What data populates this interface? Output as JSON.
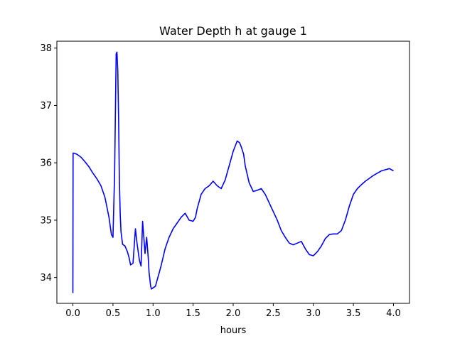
{
  "chart_data": {
    "type": "line",
    "title": "Water Depth h at gauge 1",
    "xlabel": "hours",
    "ylabel": "",
    "xlim": [
      -0.2,
      4.2
    ],
    "ylim": [
      33.55,
      38.12
    ],
    "xticks": [
      0.0,
      0.5,
      1.0,
      1.5,
      2.0,
      2.5,
      3.0,
      3.5,
      4.0
    ],
    "xtick_labels": [
      "0.0",
      "0.5",
      "1.0",
      "1.5",
      "2.0",
      "2.5",
      "3.0",
      "3.5",
      "4.0"
    ],
    "yticks": [
      34,
      35,
      36,
      37,
      38
    ],
    "ytick_labels": [
      "34",
      "35",
      "36",
      "37",
      "38"
    ],
    "grid": false,
    "series": [
      {
        "color": "#0000ff",
        "x": [
          0.0,
          0.002,
          0.01,
          0.05,
          0.1,
          0.15,
          0.2,
          0.25,
          0.3,
          0.35,
          0.4,
          0.45,
          0.48,
          0.5,
          0.52,
          0.54,
          0.55,
          0.56,
          0.57,
          0.58,
          0.59,
          0.6,
          0.62,
          0.65,
          0.68,
          0.7,
          0.72,
          0.75,
          0.78,
          0.8,
          0.83,
          0.85,
          0.87,
          0.9,
          0.92,
          0.94,
          0.95,
          0.97,
          0.98,
          1.0,
          1.03,
          1.05,
          1.08,
          1.1,
          1.15,
          1.2,
          1.25,
          1.3,
          1.35,
          1.4,
          1.45,
          1.5,
          1.53,
          1.55,
          1.58,
          1.6,
          1.65,
          1.7,
          1.75,
          1.8,
          1.85,
          1.9,
          1.95,
          2.0,
          2.05,
          2.08,
          2.1,
          2.13,
          2.15,
          2.2,
          2.25,
          2.3,
          2.35,
          2.4,
          2.45,
          2.5,
          2.55,
          2.6,
          2.65,
          2.7,
          2.75,
          2.8,
          2.85,
          2.9,
          2.95,
          3.0,
          3.05,
          3.1,
          3.15,
          3.2,
          3.25,
          3.3,
          3.35,
          3.4,
          3.45,
          3.5,
          3.55,
          3.6,
          3.65,
          3.7,
          3.75,
          3.8,
          3.85,
          3.9,
          3.95,
          4.0
        ],
        "y": [
          33.73,
          36.17,
          36.17,
          36.15,
          36.1,
          36.02,
          35.93,
          35.82,
          35.72,
          35.6,
          35.4,
          35.05,
          34.75,
          34.7,
          35.8,
          37.9,
          37.93,
          37.6,
          36.8,
          35.7,
          35.1,
          34.8,
          34.58,
          34.55,
          34.45,
          34.35,
          34.22,
          34.25,
          34.85,
          34.6,
          34.3,
          34.2,
          34.98,
          34.42,
          34.7,
          34.35,
          34.1,
          33.85,
          33.8,
          33.82,
          33.85,
          33.95,
          34.1,
          34.2,
          34.5,
          34.7,
          34.85,
          34.95,
          35.05,
          35.12,
          35.0,
          34.98,
          35.05,
          35.2,
          35.35,
          35.45,
          35.55,
          35.6,
          35.68,
          35.6,
          35.55,
          35.7,
          35.95,
          36.2,
          36.38,
          36.35,
          36.28,
          36.15,
          35.95,
          35.65,
          35.5,
          35.52,
          35.55,
          35.45,
          35.3,
          35.15,
          35.0,
          34.82,
          34.7,
          34.6,
          34.57,
          34.6,
          34.63,
          34.5,
          34.4,
          34.38,
          34.45,
          34.55,
          34.68,
          34.75,
          34.76,
          34.76,
          34.82,
          35.0,
          35.25,
          35.45,
          35.55,
          35.62,
          35.68,
          35.73,
          35.78,
          35.82,
          35.86,
          35.88,
          35.9,
          35.86
        ]
      }
    ]
  }
}
